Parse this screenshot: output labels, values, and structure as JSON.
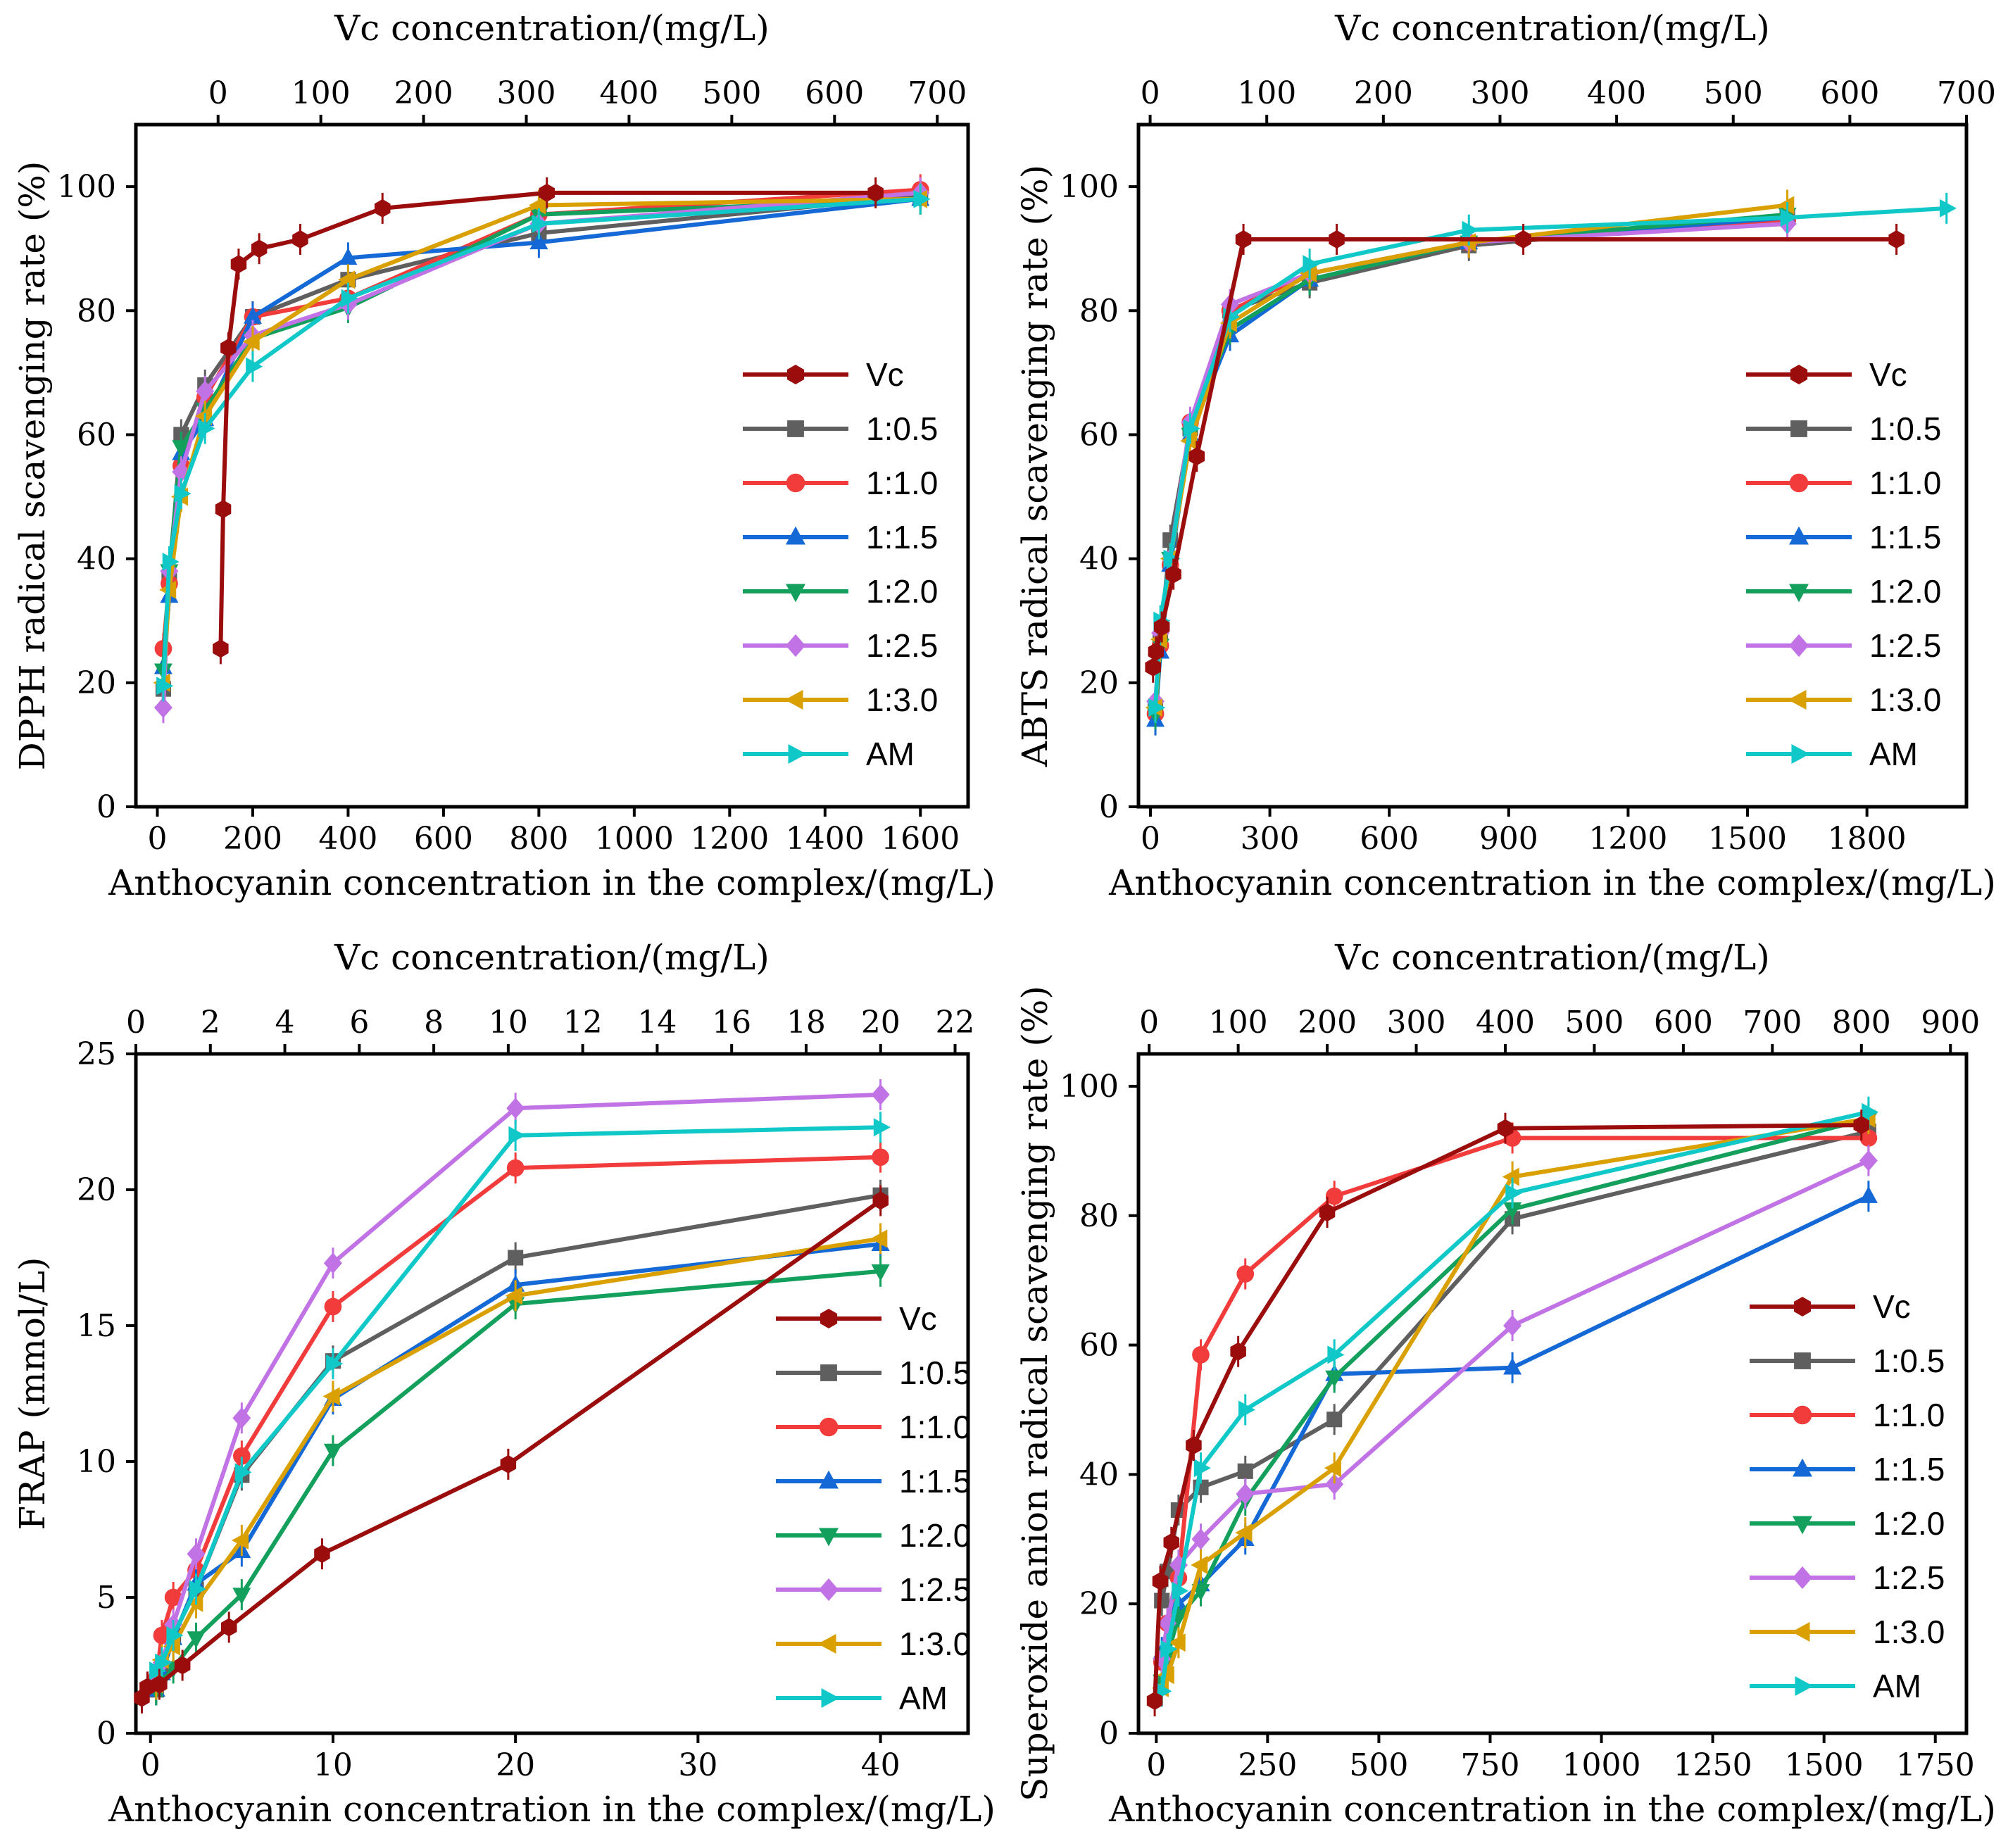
{
  "colors": {
    "Vc": "#9b0d0d",
    "1:0.5": "#5f5f5f",
    "1:1.0": "#f23b3b",
    "1:1.5": "#1469d6",
    "1:2.0": "#12a05c",
    "1:2.5": "#c173e6",
    "1:3.0": "#d9a000",
    "AM": "#10c8c8"
  },
  "markers": {
    "Vc": "hexagon",
    "1:0.5": "square",
    "1:1.0": "circle",
    "1:1.5": "triangle-up",
    "1:2.0": "triangle-down",
    "1:2.5": "diamond",
    "1:3.0": "triangle-left",
    "AM": "triangle-right"
  },
  "chart_data": [
    {
      "type": "line",
      "xlabel": "Anthocyanin concentration in the complex/(mg/L)",
      "x2label": "Vc concentration/(mg/L)",
      "ylabel": "DPPH radical scavenging rate (%)",
      "xlim": [
        -45,
        1700
      ],
      "ylim": [
        0,
        110
      ],
      "x2lim": [
        -80,
        730
      ],
      "xticks": [
        0,
        200,
        400,
        600,
        800,
        1000,
        1200,
        1400,
        1600
      ],
      "yticks": [
        0,
        20,
        40,
        60,
        80,
        100
      ],
      "x2ticks": [
        0,
        100,
        200,
        300,
        400,
        500,
        600,
        700
      ],
      "grid": false,
      "legend_position": "center-right",
      "series": [
        {
          "name": "Vc",
          "axis": "top",
          "x": [
            2.5,
            5,
            10,
            20,
            40,
            80,
            160,
            320,
            640
          ],
          "y": [
            25.5,
            48,
            74,
            87.5,
            90,
            91.5,
            96.5,
            99,
            99
          ]
        },
        {
          "name": "1:0.5",
          "x": [
            12.5,
            25,
            50,
            100,
            200,
            400,
            800,
            1600
          ],
          "y": [
            19,
            37,
            60,
            68,
            79,
            85,
            92.5,
            98.5
          ]
        },
        {
          "name": "1:1.0",
          "x": [
            12.5,
            25,
            50,
            100,
            200,
            400,
            800,
            1600
          ],
          "y": [
            25.5,
            36,
            55,
            66,
            79,
            82,
            95.5,
            99.5
          ]
        },
        {
          "name": "1:1.5",
          "x": [
            12.5,
            25,
            50,
            100,
            200,
            400,
            800,
            1600
          ],
          "y": [
            22.5,
            34,
            57,
            62.5,
            79,
            88.5,
            91,
            98
          ]
        },
        {
          "name": "1:2.0",
          "x": [
            12.5,
            25,
            50,
            100,
            200,
            400,
            800,
            1600
          ],
          "y": [
            22,
            38,
            58,
            64,
            75.5,
            80.5,
            95.5,
            98
          ]
        },
        {
          "name": "1:2.5",
          "x": [
            12.5,
            25,
            50,
            100,
            200,
            400,
            800,
            1600
          ],
          "y": [
            16,
            38,
            54,
            67,
            76,
            81,
            94,
            99
          ]
        },
        {
          "name": "1:3.0",
          "x": [
            12.5,
            25,
            50,
            100,
            200,
            400,
            800,
            1600
          ],
          "y": [
            20,
            35,
            50,
            63,
            75,
            85,
            97,
            98
          ]
        },
        {
          "name": "AM",
          "x": [
            12.5,
            25,
            50,
            100,
            200,
            400,
            800,
            1600
          ],
          "y": [
            19.5,
            39.5,
            50.5,
            61,
            71,
            82,
            94,
            98
          ]
        }
      ]
    },
    {
      "type": "line",
      "xlabel": "Anthocyanin concentration in the complex/(mg/L)",
      "x2label": "Vc concentration/(mg/L)",
      "ylabel": "ABTS radical scavenging rate (%)",
      "xlim": [
        -30,
        2050
      ],
      "ylim": [
        0,
        110
      ],
      "x2lim": [
        -10,
        700
      ],
      "xticks": [
        0,
        300,
        600,
        900,
        1200,
        1500,
        1800
      ],
      "yticks": [
        0,
        20,
        40,
        60,
        80,
        100
      ],
      "x2ticks": [
        0,
        100,
        200,
        300,
        400,
        500,
        600,
        700
      ],
      "grid": false,
      "legend_position": "center-right",
      "series": [
        {
          "name": "Vc",
          "axis": "top",
          "x": [
            2.5,
            5,
            10,
            20,
            40,
            80,
            160,
            320,
            640
          ],
          "y": [
            22.5,
            25,
            29,
            37.5,
            56.5,
            91.5,
            91.5,
            91.5,
            91.5
          ]
        },
        {
          "name": "1:0.5",
          "x": [
            12.5,
            25,
            50,
            100,
            200,
            400,
            800,
            1600
          ],
          "y": [
            16,
            27,
            43,
            61,
            80,
            84.5,
            90.5,
            95
          ]
        },
        {
          "name": "1:1.0",
          "x": [
            12.5,
            25,
            50,
            100,
            200,
            400,
            800,
            1600
          ],
          "y": [
            15,
            26,
            39,
            62,
            80,
            86,
            91,
            94.5
          ]
        },
        {
          "name": "1:1.5",
          "x": [
            12.5,
            25,
            50,
            100,
            200,
            400,
            800,
            1600
          ],
          "y": [
            14,
            25,
            39,
            60,
            76,
            85,
            91,
            95
          ]
        },
        {
          "name": "1:2.0",
          "x": [
            12.5,
            25,
            50,
            100,
            200,
            400,
            800,
            1600
          ],
          "y": [
            15,
            26,
            40,
            60,
            77,
            85,
            91,
            95.5
          ]
        },
        {
          "name": "1:2.5",
          "x": [
            12.5,
            25,
            50,
            100,
            200,
            400,
            800,
            1600
          ],
          "y": [
            17,
            28,
            40,
            62,
            81,
            86,
            91,
            94
          ]
        },
        {
          "name": "1:3.0",
          "x": [
            12.5,
            25,
            50,
            100,
            200,
            400,
            800,
            1600
          ],
          "y": [
            16,
            27,
            40,
            59,
            78,
            86,
            91,
            97
          ]
        },
        {
          "name": "AM",
          "x": [
            12.5,
            25,
            50,
            100,
            200,
            400,
            800,
            1600,
            2000
          ],
          "y": [
            16,
            30,
            40,
            61,
            79,
            87.5,
            93,
            95,
            96.5
          ]
        }
      ]
    },
    {
      "type": "line",
      "xlabel": "Anthocyanin concentration in the complex/(mg/L)",
      "x2label": "Vc concentration/(mg/L)",
      "ylabel": "FRAP (mmol/L)",
      "xlim": [
        -0.8,
        44.8
      ],
      "ylim": [
        0,
        25
      ],
      "x2lim": [
        0,
        22.35
      ],
      "xticks": [
        0,
        10,
        20,
        30,
        40
      ],
      "yticks": [
        0,
        5,
        10,
        15,
        20,
        25
      ],
      "x2ticks": [
        0,
        2,
        4,
        6,
        8,
        10,
        12,
        14,
        16,
        18,
        20,
        22
      ],
      "grid": false,
      "legend_position": "center-right",
      "series": [
        {
          "name": "Vc",
          "axis": "top",
          "x": [
            0.16,
            0.31,
            0.63,
            1.25,
            2.5,
            5,
            10,
            20
          ],
          "y": [
            1.3,
            1.7,
            1.8,
            2.5,
            3.9,
            6.6,
            9.9,
            19.6
          ]
        },
        {
          "name": "1:0.5",
          "x": [
            0.3125,
            0.625,
            1.25,
            2.5,
            5,
            10,
            20,
            40
          ],
          "y": [
            1.6,
            2.4,
            3.6,
            5.3,
            9.5,
            13.7,
            17.5,
            19.8
          ]
        },
        {
          "name": "1:1.0",
          "x": [
            0.3125,
            0.625,
            1.25,
            2.5,
            5,
            10,
            20,
            40
          ],
          "y": [
            2.0,
            3.6,
            5.0,
            6.0,
            10.2,
            15.7,
            20.8,
            21.2
          ]
        },
        {
          "name": "1:1.5",
          "x": [
            0.3125,
            0.625,
            1.25,
            2.5,
            5,
            10,
            20,
            40
          ],
          "y": [
            1.6,
            2.2,
            3.5,
            5.5,
            6.7,
            12.3,
            16.5,
            18.0
          ]
        },
        {
          "name": "1:2.0",
          "x": [
            0.3125,
            0.625,
            1.25,
            2.5,
            5,
            10,
            20,
            40
          ],
          "y": [
            1.6,
            1.9,
            2.4,
            3.5,
            5.1,
            10.4,
            15.8,
            17.0
          ]
        },
        {
          "name": "1:2.5",
          "x": [
            0.3125,
            0.625,
            1.25,
            2.5,
            5,
            10,
            20,
            40
          ],
          "y": [
            1.9,
            2.6,
            4.0,
            6.6,
            11.6,
            17.3,
            23.0,
            23.5
          ]
        },
        {
          "name": "1:3.0",
          "x": [
            0.3125,
            0.625,
            1.25,
            2.5,
            5,
            10,
            20,
            40
          ],
          "y": [
            1.8,
            2.7,
            3.2,
            4.8,
            7.1,
            12.4,
            16.1,
            18.2
          ]
        },
        {
          "name": "AM",
          "x": [
            0.3125,
            0.625,
            1.25,
            2.5,
            5,
            10,
            20,
            40
          ],
          "y": [
            2.3,
            2.6,
            3.6,
            5.3,
            9.6,
            13.6,
            22.0,
            22.3
          ]
        }
      ]
    },
    {
      "type": "line",
      "xlabel": "Anthocyanin concentration in the complex/(mg/L)",
      "x2label": "Vc concentration/(mg/L)",
      "ylabel": "Superoxide anion radical scavenging rate (%)",
      "xlim": [
        -40,
        1820
      ],
      "ylim": [
        0,
        105
      ],
      "x2lim": [
        -12,
        918
      ],
      "xticks": [
        0,
        250,
        500,
        750,
        1000,
        1250,
        1500,
        1750
      ],
      "yticks": [
        0,
        20,
        40,
        60,
        80,
        100
      ],
      "x2ticks": [
        0,
        100,
        200,
        300,
        400,
        500,
        600,
        700,
        800,
        900
      ],
      "grid": false,
      "legend_position": "lower-right",
      "series": [
        {
          "name": "Vc",
          "axis": "top",
          "x": [
            6.25,
            12.5,
            25,
            50,
            100,
            200,
            400,
            800
          ],
          "y": [
            5,
            23.5,
            29.5,
            44.5,
            59,
            80.5,
            93.5,
            94
          ]
        },
        {
          "name": "1:0.5",
          "x": [
            12.5,
            25,
            50,
            100,
            200,
            400,
            800,
            1600
          ],
          "y": [
            20.5,
            25,
            34.5,
            38,
            40.5,
            48.5,
            79.5,
            93
          ]
        },
        {
          "name": "1:1.0",
          "x": [
            12.5,
            25,
            50,
            100,
            200,
            400,
            800,
            1600
          ],
          "y": [
            11,
            17,
            24,
            58.5,
            71,
            83,
            92,
            92
          ]
        },
        {
          "name": "1:1.5",
          "x": [
            12.5,
            25,
            50,
            100,
            200,
            400,
            800,
            1600
          ],
          "y": [
            12.5,
            13,
            20,
            23,
            30,
            55.5,
            56.5,
            83
          ]
        },
        {
          "name": "1:2.0",
          "x": [
            12.5,
            25,
            50,
            100,
            200,
            400,
            800,
            1600
          ],
          "y": [
            8,
            12,
            18,
            22,
            36,
            55,
            81,
            95
          ]
        },
        {
          "name": "1:2.5",
          "x": [
            12.5,
            25,
            50,
            100,
            200,
            400,
            800,
            1600
          ],
          "y": [
            11.5,
            17,
            26,
            30,
            37,
            38.5,
            63,
            88.5
          ]
        },
        {
          "name": "1:3.0",
          "x": [
            12.5,
            25,
            50,
            100,
            200,
            400,
            800,
            1600
          ],
          "y": [
            7,
            9,
            14,
            26,
            31,
            41,
            86,
            95
          ]
        },
        {
          "name": "AM",
          "x": [
            12.5,
            25,
            50,
            100,
            200,
            400,
            800,
            1600
          ],
          "y": [
            6.5,
            13,
            22,
            41,
            50,
            58.5,
            83.5,
            96
          ]
        }
      ]
    }
  ],
  "legend_order": [
    "Vc",
    "1:0.5",
    "1:1.0",
    "1:1.5",
    "1:2.0",
    "1:2.5",
    "1:3.0",
    "AM"
  ]
}
